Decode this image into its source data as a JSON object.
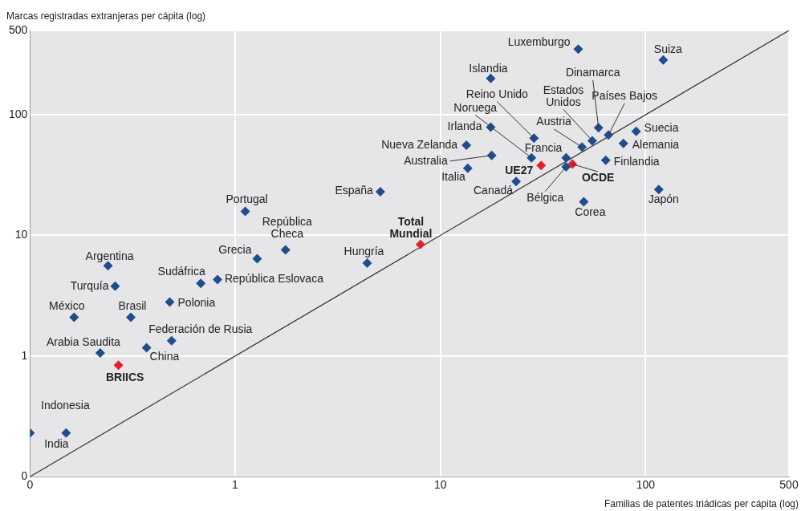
{
  "chart_data": {
    "type": "scatter",
    "xlabel": "Familias de patentes triádicas per cápita (log)",
    "ylabel": "Marcas registradas extranjeras per cápita (log)",
    "log": "xy",
    "grid": true,
    "legend": false,
    "marker": "diamond",
    "xlim": [
      0.1,
      500
    ],
    "ylim": [
      0.1,
      500
    ],
    "xticks": [
      {
        "value": 0.1,
        "label": "0"
      },
      1,
      10,
      100,
      500
    ],
    "yticks": [
      {
        "value": 0.1,
        "label": "0"
      },
      1,
      10,
      100,
      500
    ],
    "series": [
      {
        "name": "Luxemburgo",
        "color": "#1f4e8c",
        "x": [
          47
        ],
        "values": [
          350
        ]
      },
      {
        "name": "Suiza",
        "color": "#1f4e8c",
        "x": [
          122
        ],
        "values": [
          285
        ]
      },
      {
        "name": "Islandia",
        "color": "#1f4e8c",
        "x": [
          17.6
        ],
        "values": [
          200
        ]
      },
      {
        "name": "Dinamarca",
        "color": "#1f4e8c",
        "x": [
          59
        ],
        "values": [
          78
        ]
      },
      {
        "name": "Países Bajos",
        "color": "#1f4e8c",
        "x": [
          66
        ],
        "values": [
          68
        ]
      },
      {
        "name": "Estados Unidos",
        "color": "#1f4e8c",
        "x": [
          55
        ],
        "values": [
          61
        ]
      },
      {
        "name": "Austria",
        "color": "#1f4e8c",
        "x": [
          49
        ],
        "values": [
          54
        ]
      },
      {
        "name": "Reino Unido",
        "color": "#1f4e8c",
        "x": [
          28.6
        ],
        "values": [
          64
        ]
      },
      {
        "name": "Noruega",
        "color": "#1f4e8c",
        "x": [
          27.8
        ],
        "values": [
          44
        ]
      },
      {
        "name": "Francia",
        "color": "#1f4e8c",
        "x": [
          41
        ],
        "values": [
          44
        ]
      },
      {
        "name": "Bélgica",
        "color": "#1f4e8c",
        "x": [
          41
        ],
        "values": [
          37
        ]
      },
      {
        "name": "Irlanda",
        "color": "#1f4e8c",
        "x": [
          17.6
        ],
        "values": [
          79
        ]
      },
      {
        "name": "Nueva Zelanda",
        "color": "#1f4e8c",
        "x": [
          13.4
        ],
        "values": [
          56
        ]
      },
      {
        "name": "Australia",
        "color": "#1f4e8c",
        "x": [
          17.8
        ],
        "values": [
          46
        ]
      },
      {
        "name": "Italia",
        "color": "#1f4e8c",
        "x": [
          13.6
        ],
        "values": [
          36
        ]
      },
      {
        "name": "Canadá",
        "color": "#1f4e8c",
        "x": [
          23.4
        ],
        "values": [
          28
        ]
      },
      {
        "name": "Suecia",
        "color": "#1f4e8c",
        "x": [
          90
        ],
        "values": [
          73
        ]
      },
      {
        "name": "Alemania",
        "color": "#1f4e8c",
        "x": [
          78
        ],
        "values": [
          58
        ]
      },
      {
        "name": "Finlandia",
        "color": "#1f4e8c",
        "x": [
          64
        ],
        "values": [
          42
        ]
      },
      {
        "name": "Japón",
        "color": "#1f4e8c",
        "x": [
          116
        ],
        "values": [
          24
        ]
      },
      {
        "name": "Corea",
        "color": "#1f4e8c",
        "x": [
          50
        ],
        "values": [
          19
        ]
      },
      {
        "name": "España",
        "color": "#1f4e8c",
        "x": [
          5.1
        ],
        "values": [
          23
        ]
      },
      {
        "name": "Portugal",
        "color": "#1f4e8c",
        "x": [
          1.12
        ],
        "values": [
          15.8
        ]
      },
      {
        "name": "República Checa",
        "color": "#1f4e8c",
        "x": [
          1.76
        ],
        "values": [
          7.6
        ]
      },
      {
        "name": "Grecia",
        "color": "#1f4e8c",
        "x": [
          1.28
        ],
        "values": [
          6.4
        ]
      },
      {
        "name": "Hungría",
        "color": "#1f4e8c",
        "x": [
          4.4
        ],
        "values": [
          5.9
        ]
      },
      {
        "name": "Argentina",
        "color": "#1f4e8c",
        "x": [
          0.24
        ],
        "values": [
          5.6
        ]
      },
      {
        "name": "Turquía",
        "color": "#1f4e8c",
        "x": [
          0.26
        ],
        "values": [
          3.8
        ]
      },
      {
        "name": "Sudáfrica",
        "color": "#1f4e8c",
        "x": [
          0.68
        ],
        "values": [
          4
        ]
      },
      {
        "name": "República Eslovaca",
        "color": "#1f4e8c",
        "x": [
          0.82
        ],
        "values": [
          4.3
        ]
      },
      {
        "name": "Polonia",
        "color": "#1f4e8c",
        "x": [
          0.48
        ],
        "values": [
          2.8
        ]
      },
      {
        "name": "México",
        "color": "#1f4e8c",
        "x": [
          0.164
        ],
        "values": [
          2.1
        ]
      },
      {
        "name": "Brasil",
        "color": "#1f4e8c",
        "x": [
          0.31
        ],
        "values": [
          2.1
        ]
      },
      {
        "name": "Federación de Rusia",
        "color": "#1f4e8c",
        "x": [
          0.49
        ],
        "values": [
          1.34
        ]
      },
      {
        "name": "China",
        "color": "#1f4e8c",
        "x": [
          0.37
        ],
        "values": [
          1.17
        ]
      },
      {
        "name": "Arabia Saudita",
        "color": "#1f4e8c",
        "x": [
          0.22
        ],
        "values": [
          1.06
        ]
      },
      {
        "name": "Indonesia",
        "color": "#1f4e8c",
        "x": [
          0.1
        ],
        "values": [
          0.23
        ]
      },
      {
        "name": "India",
        "color": "#1f4e8c",
        "x": [
          0.15
        ],
        "values": [
          0.23
        ]
      },
      {
        "name": "UE27",
        "color": "#e3202a",
        "x": [
          31
        ],
        "values": [
          38
        ]
      },
      {
        "name": "OCDE",
        "color": "#e3202a",
        "x": [
          44
        ],
        "values": [
          39
        ]
      },
      {
        "name": "Total Mundial",
        "color": "#e3202a",
        "x": [
          8
        ],
        "values": [
          8.4
        ]
      },
      {
        "name": "BRIICS",
        "color": "#e3202a",
        "x": [
          0.27
        ],
        "values": [
          0.84
        ]
      },
      {
        "type": "line",
        "color": "#333333",
        "marker": "none",
        "x": [
          0.1,
          500
        ],
        "values": [
          0.1,
          500
        ]
      }
    ]
  }
}
